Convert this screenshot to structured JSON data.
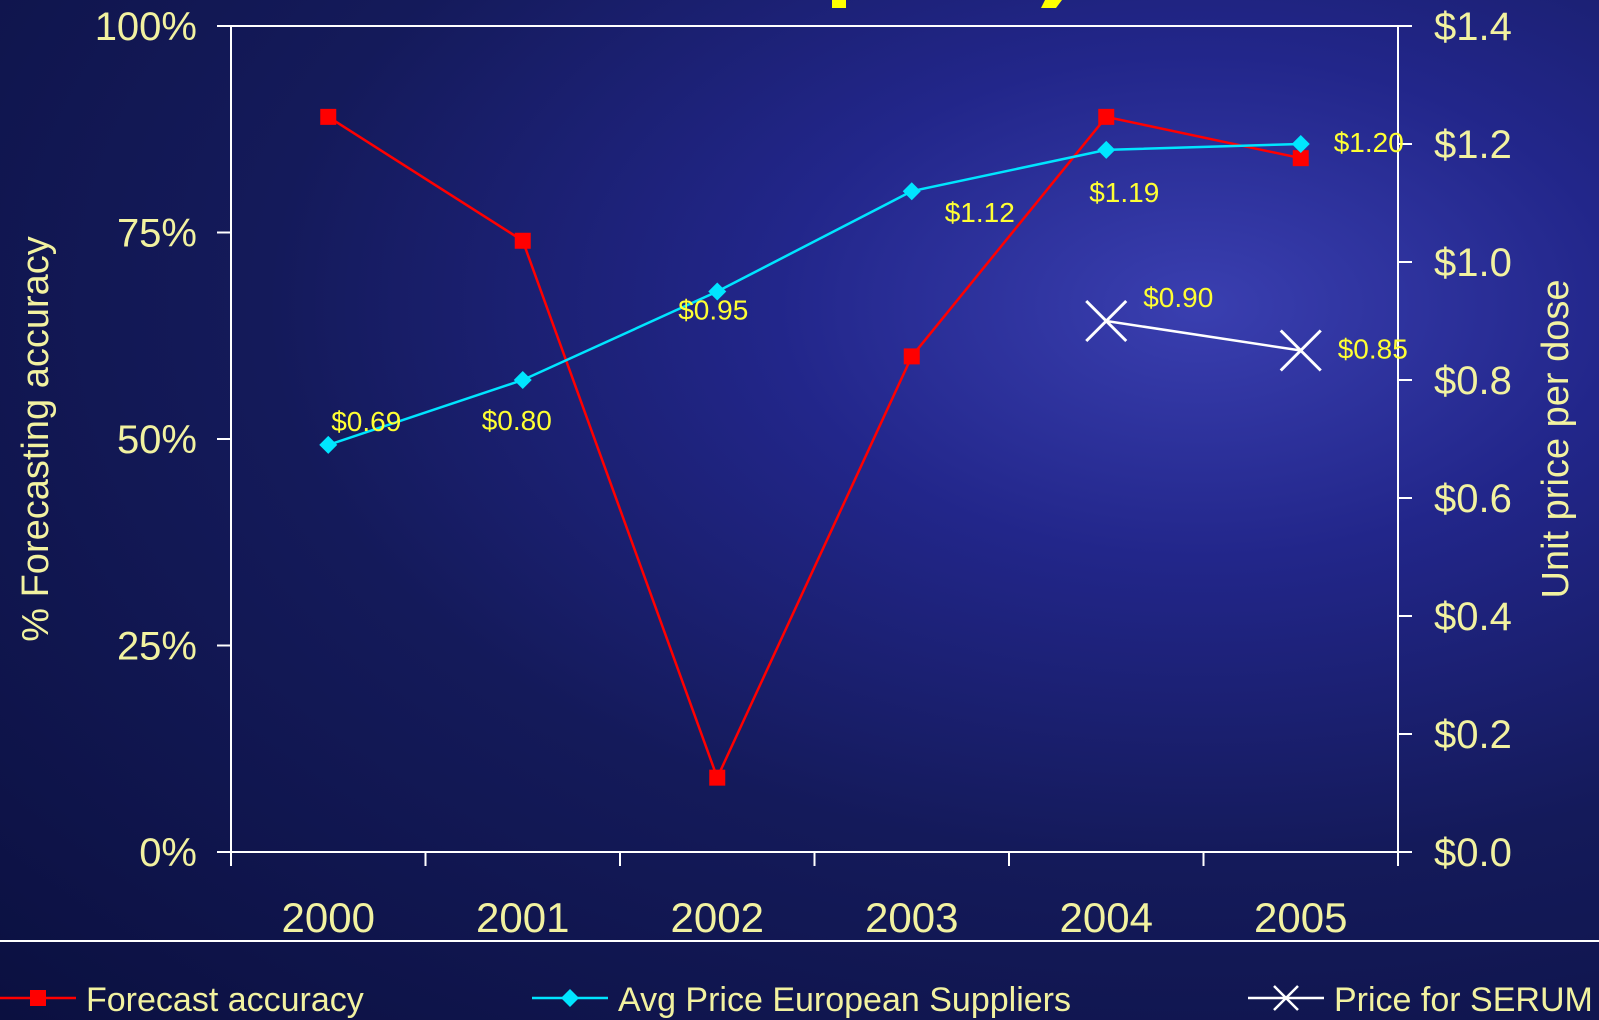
{
  "colors": {
    "axis": "#ffffff",
    "label": "#f2f2a0",
    "data_label": "#ffff33",
    "forecast": "#ff0000",
    "avg_price": "#00e5ff",
    "serum": "#ffffff",
    "title_fragment": "#ffff00"
  },
  "chart_data": {
    "type": "line",
    "title": "",
    "categories": [
      "2000",
      "2001",
      "2002",
      "2003",
      "2004",
      "2005"
    ],
    "y_left": {
      "label": "% Forecasting accuracy",
      "range": [
        0,
        100
      ],
      "ticks": [
        0,
        25,
        50,
        75,
        100
      ],
      "tick_labels": [
        "0%",
        "25%",
        "50%",
        "75%",
        "100%"
      ]
    },
    "y_right": {
      "label": "Unit price per dose",
      "range": [
        0,
        1.4
      ],
      "ticks": [
        0,
        0.2,
        0.4,
        0.6,
        0.8,
        1.0,
        1.2,
        1.4
      ],
      "tick_labels": [
        "$0.0",
        "$0.2",
        "$0.4",
        "$0.6",
        "$0.8",
        "$1.0",
        "$1.2",
        "$1.4"
      ]
    },
    "series": [
      {
        "name": "Forecast accuracy",
        "axis": "left",
        "marker": "square",
        "values": [
          89,
          74,
          9,
          60,
          89,
          84
        ],
        "data_labels": [
          null,
          null,
          null,
          null,
          null,
          null
        ]
      },
      {
        "name": "Avg Price European Suppliers",
        "axis": "right",
        "marker": "diamond",
        "values": [
          0.69,
          0.8,
          0.95,
          1.12,
          1.19,
          1.2
        ],
        "data_labels": [
          "$0.69",
          "$0.80",
          "$0.95",
          "$1.12",
          "$1.19",
          "$1.20"
        ]
      },
      {
        "name": "Price for SERUM",
        "axis": "right",
        "marker": "x",
        "values": [
          null,
          null,
          null,
          null,
          0.9,
          0.85
        ],
        "data_labels": [
          null,
          null,
          null,
          null,
          "$0.90",
          "$0.85"
        ]
      }
    ],
    "grid": false,
    "legend_position": "bottom"
  }
}
